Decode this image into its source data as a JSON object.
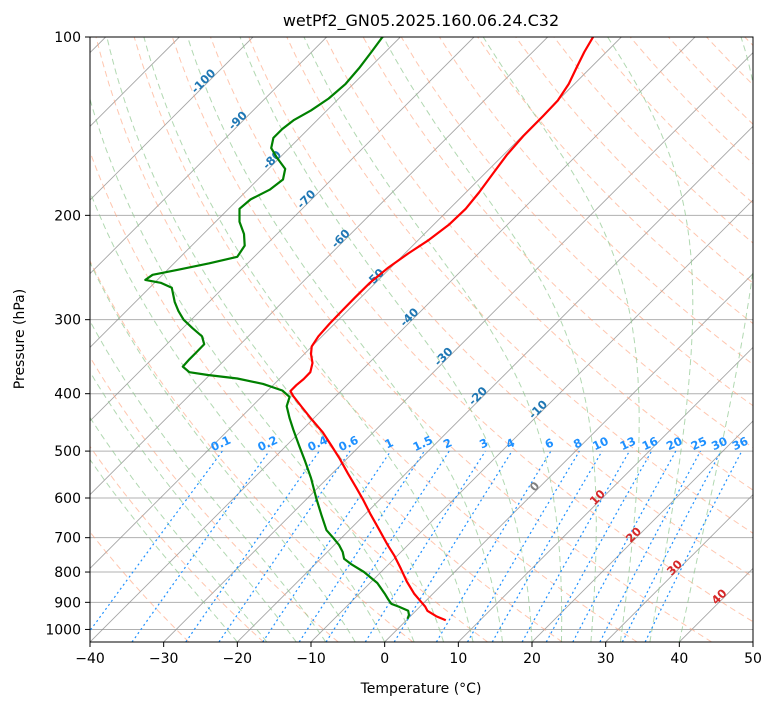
{
  "chart_data": {
    "type": "line",
    "title": "wetPf2_GN05.2025.160.06.24.C32",
    "xlabel": "Temperature (°C)",
    "ylabel": "Pressure (hPa)",
    "xlim": [
      -40,
      50
    ],
    "ylim": [
      1050,
      100
    ],
    "yscale": "log",
    "grid": true,
    "x_ticks": [
      "−40",
      "−30",
      "−20",
      "−10",
      "0",
      "10",
      "20",
      "30",
      "40",
      "50"
    ],
    "x_tick_values": [
      -40,
      -30,
      -20,
      -10,
      0,
      10,
      20,
      30,
      40,
      50
    ],
    "y_ticks": [
      "100",
      "200",
      "300",
      "400",
      "500",
      "600",
      "700",
      "800",
      "900",
      "1000"
    ],
    "y_tick_values": [
      100,
      200,
      300,
      400,
      500,
      600,
      700,
      800,
      900,
      1000
    ],
    "series": [
      {
        "role": "temperature",
        "color": "#ff0000",
        "points": [
          [
            8.3,
            965
          ],
          [
            7.0,
            950
          ],
          [
            5.8,
            930
          ],
          [
            5.5,
            915
          ],
          [
            5.0,
            900
          ],
          [
            4.0,
            870
          ],
          [
            3.0,
            830
          ],
          [
            2.2,
            790
          ],
          [
            1.3,
            750
          ],
          [
            0.4,
            720
          ],
          [
            -0.7,
            680
          ],
          [
            -1.9,
            640
          ],
          [
            -2.9,
            605
          ],
          [
            -3.9,
            575
          ],
          [
            -5.0,
            545
          ],
          [
            -6.1,
            515
          ],
          [
            -7.2,
            490
          ],
          [
            -8.4,
            465
          ],
          [
            -9.9,
            442
          ],
          [
            -11.2,
            422
          ],
          [
            -12.4,
            404
          ],
          [
            -12.8,
            396
          ],
          [
            -12.0,
            387
          ],
          [
            -11.0,
            378
          ],
          [
            -10.1,
            368
          ],
          [
            -9.8,
            355
          ],
          [
            -10.0,
            343
          ],
          [
            -9.9,
            333
          ],
          [
            -9.0,
            320
          ],
          [
            -7.5,
            305
          ],
          [
            -5.8,
            290
          ],
          [
            -4.0,
            275
          ],
          [
            -2.0,
            260
          ],
          [
            0.5,
            245
          ],
          [
            3.2,
            232
          ],
          [
            6.0,
            220
          ],
          [
            8.8,
            207
          ],
          [
            11.0,
            195
          ],
          [
            12.8,
            183
          ],
          [
            14.7,
            170
          ],
          [
            16.6,
            158
          ],
          [
            18.8,
            147
          ],
          [
            21.5,
            136
          ],
          [
            23.5,
            128
          ],
          [
            25.0,
            120
          ],
          [
            26.0,
            113
          ],
          [
            27.1,
            106
          ],
          [
            28.3,
            100
          ]
        ]
      },
      {
        "role": "dewpoint",
        "color": "#008000",
        "points": [
          [
            3.1,
            960
          ],
          [
            3.3,
            945
          ],
          [
            3.2,
            930
          ],
          [
            1.9,
            915
          ],
          [
            0.9,
            905
          ],
          [
            0.5,
            890
          ],
          [
            0.0,
            870
          ],
          [
            -1.0,
            835
          ],
          [
            -2.8,
            800
          ],
          [
            -4.6,
            775
          ],
          [
            -5.5,
            760
          ],
          [
            -5.7,
            740
          ],
          [
            -6.2,
            720
          ],
          [
            -7.0,
            700
          ],
          [
            -7.9,
            680
          ],
          [
            -8.6,
            640
          ],
          [
            -9.3,
            600
          ],
          [
            -10.0,
            555
          ],
          [
            -10.8,
            520
          ],
          [
            -11.6,
            490
          ],
          [
            -12.4,
            460
          ],
          [
            -12.9,
            440
          ],
          [
            -13.3,
            420
          ],
          [
            -12.9,
            405
          ],
          [
            -13.9,
            395
          ],
          [
            -16.5,
            385
          ],
          [
            -20.0,
            377
          ],
          [
            -24.0,
            372
          ],
          [
            -26.5,
            368
          ],
          [
            -27.4,
            360
          ],
          [
            -26.5,
            350
          ],
          [
            -25.5,
            340
          ],
          [
            -24.5,
            330
          ],
          [
            -24.8,
            320
          ],
          [
            -26.1,
            310
          ],
          [
            -27.3,
            300
          ],
          [
            -28.0,
            290
          ],
          [
            -28.5,
            280
          ],
          [
            -28.9,
            265
          ],
          [
            -30.4,
            260
          ],
          [
            -32.5,
            257
          ],
          [
            -31.5,
            252
          ],
          [
            -28.0,
            247
          ],
          [
            -23.8,
            241
          ],
          [
            -20.0,
            235
          ],
          [
            -19.0,
            225
          ],
          [
            -19.1,
            215
          ],
          [
            -19.7,
            205
          ],
          [
            -19.7,
            195
          ],
          [
            -18.2,
            188
          ],
          [
            -15.6,
            181
          ],
          [
            -13.8,
            174
          ],
          [
            -13.5,
            167
          ],
          [
            -14.6,
            160
          ],
          [
            -15.4,
            154
          ],
          [
            -15.1,
            148
          ],
          [
            -13.9,
            143
          ],
          [
            -12.3,
            138
          ],
          [
            -10.0,
            133
          ],
          [
            -7.6,
            127
          ],
          [
            -5.3,
            120
          ],
          [
            -3.5,
            113
          ],
          [
            -1.8,
            106
          ],
          [
            -0.3,
            100
          ]
        ]
      }
    ],
    "dry_adiabat_color": "#ffa07a",
    "moist_adiabat_color": "#90c890",
    "mixing_ratio_color": "#1e90ff",
    "isotherm_color": "#888888",
    "isotherm_labels": [
      "-100",
      "-90",
      "-80",
      "-70",
      "-60",
      "-50",
      "-40",
      "-30",
      "-20",
      "-10",
      "0",
      "10",
      "20",
      "30",
      "40"
    ],
    "isotherm_label_colors": [
      "#1f77b4",
      "#1f77b4",
      "#1f77b4",
      "#1f77b4",
      "#1f77b4",
      "#1f77b4",
      "#1f77b4",
      "#1f77b4",
      "#1f77b4",
      "#1f77b4",
      "#808080",
      "#d62728",
      "#d62728",
      "#d62728",
      "#d62728"
    ],
    "mixing_ratio_labels": [
      "0.1",
      "0.2",
      "0.4",
      "0.6",
      "1",
      "1.5",
      "2",
      "3",
      "4",
      "6",
      "8",
      "10",
      "13",
      "16",
      "20",
      "25",
      "30",
      "36"
    ]
  }
}
